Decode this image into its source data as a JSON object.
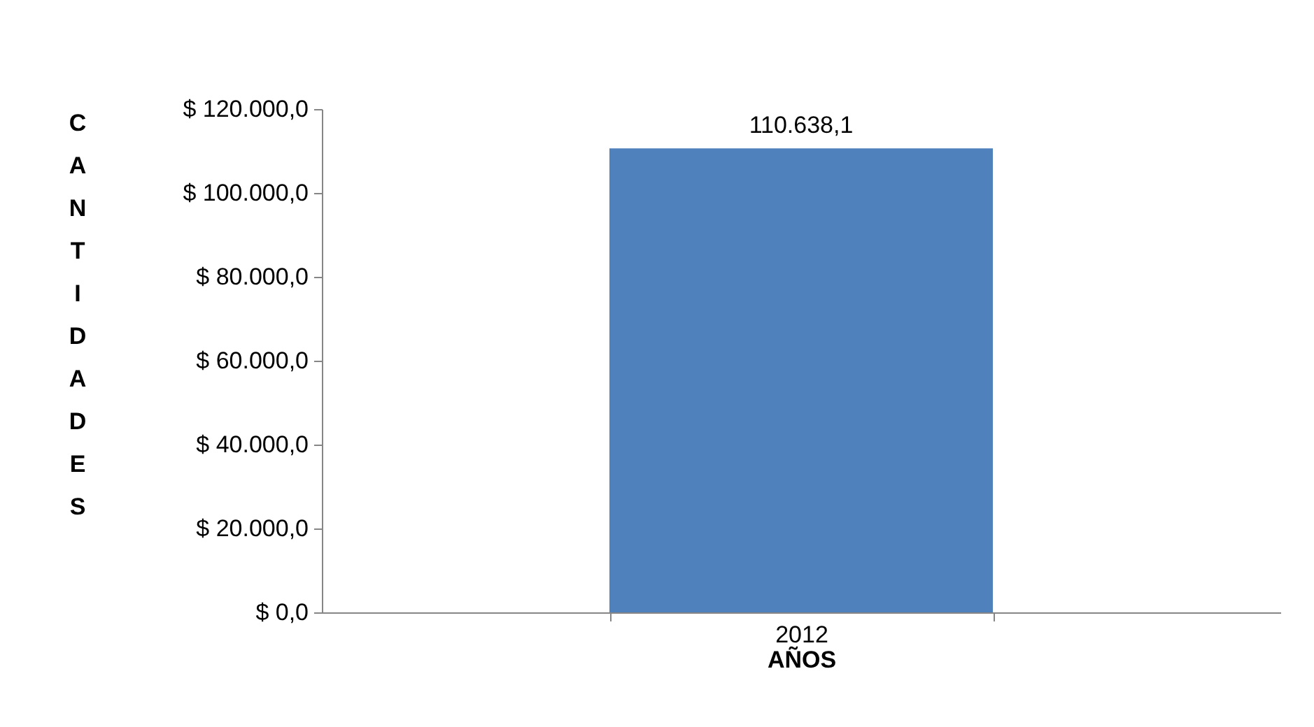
{
  "chart_data": {
    "type": "bar",
    "xlabel": "AÑOS",
    "ylabel": "CANTIDADES",
    "categories": [
      "2012"
    ],
    "values": [
      110638.1
    ],
    "value_labels": [
      "110.638,1"
    ],
    "colors": [
      "#4f81bd"
    ],
    "ylim": [
      0,
      120000
    ],
    "yticks": [
      {
        "value": 0,
        "label": "$ 0,0"
      },
      {
        "value": 20000,
        "label": "$ 20.000,0"
      },
      {
        "value": 40000,
        "label": "$ 40.000,0"
      },
      {
        "value": 60000,
        "label": "$ 60.000,0"
      },
      {
        "value": 80000,
        "label": "$ 80.000,0"
      },
      {
        "value": 100000,
        "label": "$ 100.000,0"
      },
      {
        "value": 120000,
        "label": "$ 120.000,0"
      }
    ],
    "grid": false
  }
}
